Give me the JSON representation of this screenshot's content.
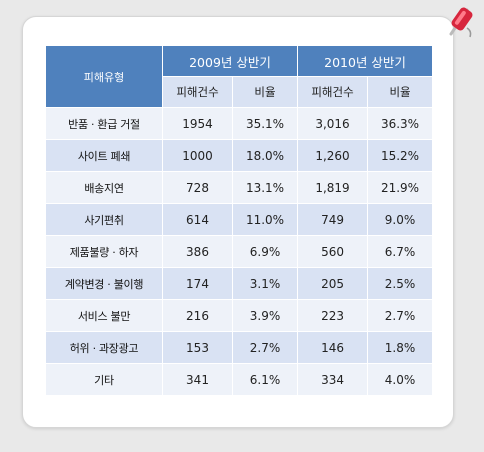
{
  "table": {
    "header_type": "피해유형",
    "periods": [
      "2009년 상반기",
      "2010년 상반기"
    ],
    "subheaders": [
      "피해건수",
      "비율",
      "피해건수",
      "비율"
    ],
    "rows": [
      {
        "type": "반품 · 환급 거절",
        "c2009": "1954",
        "p2009": "35.1%",
        "c2010": "3,016",
        "p2010": "36.3%"
      },
      {
        "type": "사이트 폐쇄",
        "c2009": "1000",
        "p2009": "18.0%",
        "c2010": "1,260",
        "p2010": "15.2%"
      },
      {
        "type": "배송지연",
        "c2009": "728",
        "p2009": "13.1%",
        "c2010": "1,819",
        "p2010": "21.9%"
      },
      {
        "type": "사기편취",
        "c2009": "614",
        "p2009": "11.0%",
        "c2010": "749",
        "p2010": "9.0%"
      },
      {
        "type": "제품불량 · 하자",
        "c2009": "386",
        "p2009": "6.9%",
        "c2010": "560",
        "p2010": "6.7%"
      },
      {
        "type": "계약변경 · 불이행",
        "c2009": "174",
        "p2009": "3.1%",
        "c2010": "205",
        "p2010": "2.5%"
      },
      {
        "type": "서비스 불만",
        "c2009": "216",
        "p2009": "3.9%",
        "c2010": "223",
        "p2010": "2.7%"
      },
      {
        "type": "허위 · 과장광고",
        "c2009": "153",
        "p2009": "2.7%",
        "c2010": "146",
        "p2010": "1.8%"
      },
      {
        "type": "기타",
        "c2009": "341",
        "p2009": "6.1%",
        "c2010": "334",
        "p2010": "4.0%"
      }
    ]
  },
  "icons": {
    "corner": "pushpin-icon"
  },
  "colors": {
    "header": "#4f81bd",
    "band_dark": "#d9e2f3",
    "band_light": "#eef2f9"
  }
}
